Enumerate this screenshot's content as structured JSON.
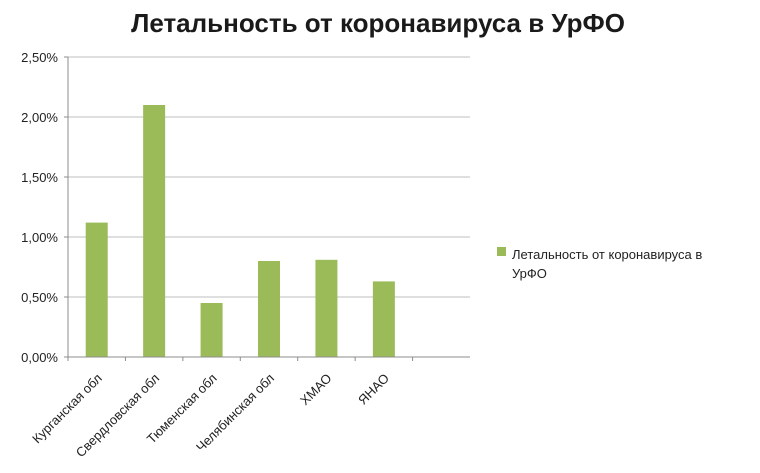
{
  "chart_data": {
    "type": "bar",
    "title": "Летальность от коронавируса в УрФО",
    "xlabel": "",
    "ylabel": "",
    "categories": [
      "Курганская обл",
      "Свердловская обл",
      "Тюменская обл",
      "Челябинская обл",
      "ХМАО",
      "ЯНАО"
    ],
    "series": [
      {
        "name": "Летальность от коронавируса в УрФО",
        "values": [
          0.0112,
          0.021,
          0.0045,
          0.008,
          0.0081,
          0.0063
        ],
        "color": "#9bbb59"
      }
    ],
    "ylim": [
      0,
      0.025
    ],
    "yticks": [
      0,
      0.005,
      0.01,
      0.015,
      0.02,
      0.025
    ],
    "ytick_labels": [
      "0,00%",
      "0,50%",
      "1,00%",
      "1,50%",
      "2,00%",
      "2,50%"
    ],
    "grid": true,
    "legend": {
      "position": "right",
      "label_lines": [
        "Летальность от коронавируса в",
        "УрФО"
      ]
    }
  }
}
